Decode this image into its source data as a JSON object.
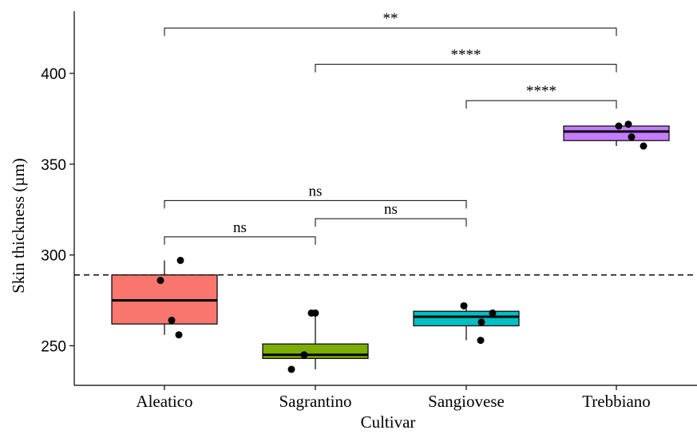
{
  "chart_data": {
    "type": "box",
    "xlabel": "Cultivar",
    "ylabel": "Skin thickness (µm)",
    "ylim": [
      228,
      432
    ],
    "yticks": [
      250,
      300,
      350,
      400
    ],
    "categories": [
      "Aleatico",
      "Sagrantino",
      "Sangiovese",
      "Trebbiano"
    ],
    "boxes": [
      {
        "category": "Aleatico",
        "color": "#F8766D",
        "whisker_low": 256,
        "q1": 262,
        "median": 275,
        "q3": 289,
        "whisker_high": 297
      },
      {
        "category": "Sagrantino",
        "color": "#7CAE00",
        "whisker_low": 237,
        "q1": 243,
        "median": 245,
        "q3": 251,
        "whisker_high": 268
      },
      {
        "category": "Sangiovese",
        "color": "#00BFC4",
        "whisker_low": 253,
        "q1": 261,
        "median": 266,
        "q3": 269,
        "whisker_high": 272
      },
      {
        "category": "Trebbiano",
        "color": "#C77CFF",
        "whisker_low": 360,
        "q1": 363,
        "median": 368,
        "q3": 371,
        "whisker_high": 372
      }
    ],
    "points": [
      {
        "category": "Aleatico",
        "values": [
          297,
          286,
          264,
          256
        ]
      },
      {
        "category": "Sagrantino",
        "values": [
          268,
          268,
          245,
          237
        ]
      },
      {
        "category": "Sangiovese",
        "values": [
          272,
          268,
          263,
          253
        ]
      },
      {
        "category": "Trebbiano",
        "values": [
          371,
          372,
          365,
          360
        ]
      }
    ],
    "reference_line": 289,
    "comparisons": [
      {
        "from": "Aleatico",
        "to": "Trebbiano",
        "y": 425,
        "label": "**"
      },
      {
        "from": "Sagrantino",
        "to": "Trebbiano",
        "y": 405,
        "label": "****"
      },
      {
        "from": "Sangiovese",
        "to": "Trebbiano",
        "y": 385,
        "label": "****"
      },
      {
        "from": "Aleatico",
        "to": "Sangiovese",
        "y": 330,
        "label": "ns"
      },
      {
        "from": "Sagrantino",
        "to": "Sangiovese",
        "y": 320,
        "label": "ns"
      },
      {
        "from": "Aleatico",
        "to": "Sagrantino",
        "y": 310,
        "label": "ns"
      }
    ]
  }
}
